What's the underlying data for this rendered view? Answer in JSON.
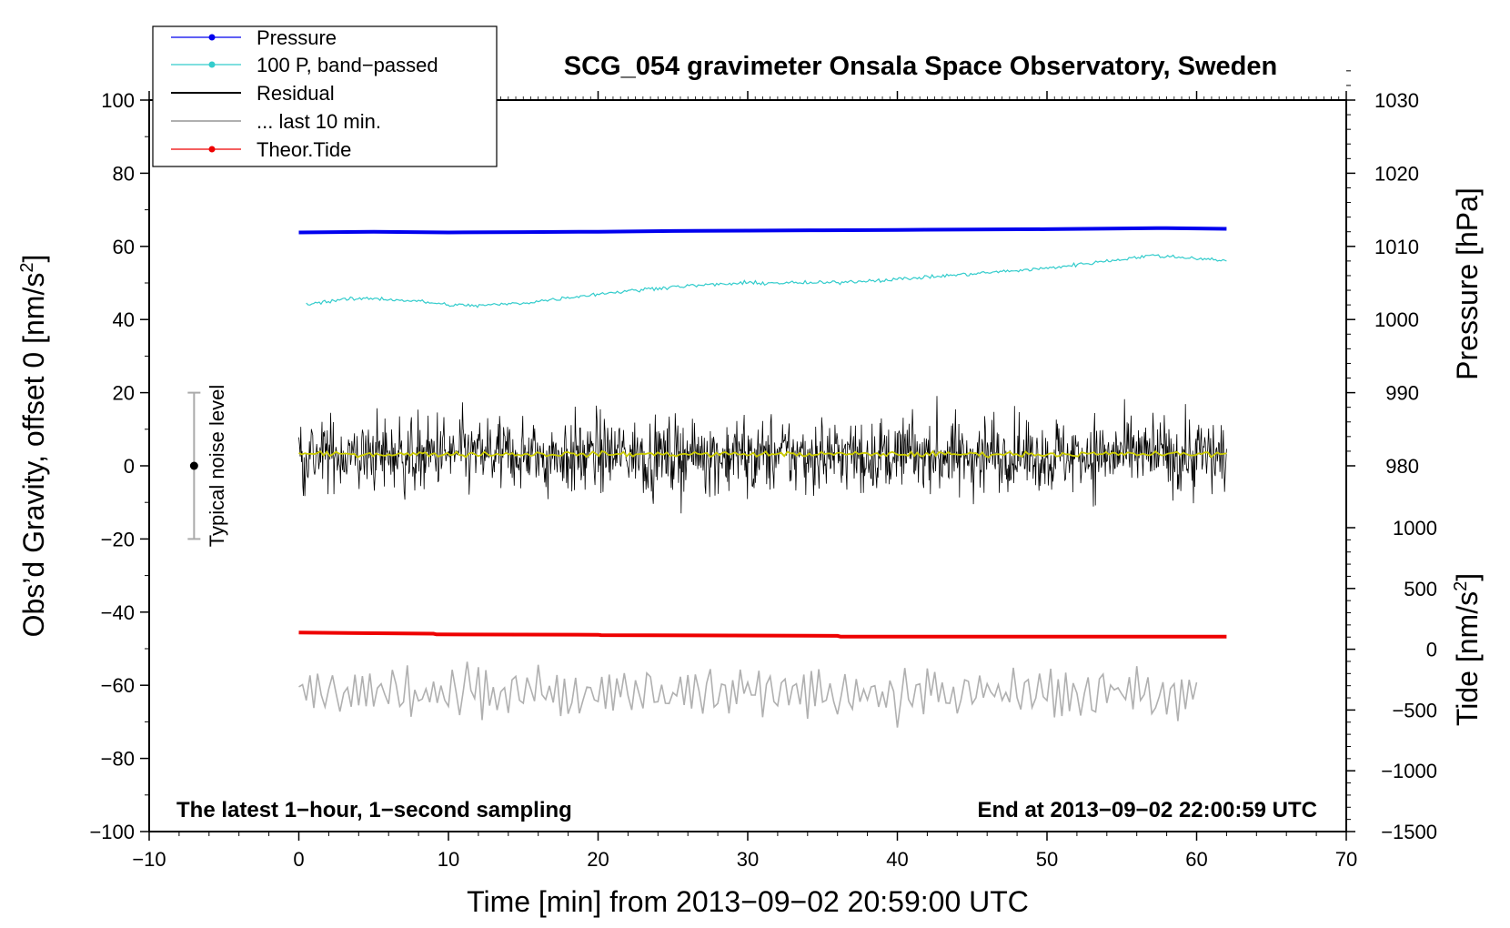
{
  "chart_data": {
    "type": "line",
    "title": "SCG_054 gravimeter Onsala Space Observatory, Sweden",
    "xlabel": "Time [min] from 2013−09−02 20:59:00 UTC",
    "ylabel_left": "Obs’d Gravity, offset 0 [nm/s",
    "ylabel_left_sup": "2",
    "ylabel_left_end": "]",
    "ylabel_pressure": "Pressure [hPa]",
    "ylabel_tide": "Tide [nm/s",
    "ylabel_tide_sup": "2",
    "ylabel_tide_end": "]",
    "xlim": [
      -10,
      70
    ],
    "ylim": [
      -100,
      100
    ],
    "x_ticks": [
      "−10",
      "0",
      "10",
      "20",
      "30",
      "40",
      "50",
      "60",
      "70"
    ],
    "y_ticks": [
      "100",
      "80",
      "60",
      "40",
      "20",
      "0",
      "−20",
      "−40",
      "−60",
      "−80",
      "−100"
    ],
    "pressure_ticks": [
      "1030",
      "1020",
      "1010",
      "1000",
      "990",
      "980"
    ],
    "tide_ticks": [
      "1000",
      "500",
      "0",
      "−500",
      "−1000",
      "−1500"
    ],
    "annotation_left": "The latest 1−hour, 1−second sampling",
    "annotation_right": "End at 2013−09−02 22:00:59 UTC",
    "noise_label": "Typical noise level",
    "noise_bar": {
      "x": -7,
      "center": 0,
      "low": -20,
      "high": 20
    },
    "legend": [
      {
        "label": "Pressure",
        "color": "#0000ee",
        "marker": true
      },
      {
        "label": "100 P, band−passed",
        "color": "#33cccc",
        "marker": true
      },
      {
        "label": "Residual",
        "color": "#000000",
        "marker": false
      },
      {
        "label": "... last 10 min.",
        "color": "#b0b0b0",
        "marker": false
      },
      {
        "label": "Theor.Tide",
        "color": "#ee0000",
        "marker": true
      }
    ],
    "series": [
      {
        "name": "Pressure",
        "color": "#0000ee",
        "x": [
          0,
          5,
          10,
          15,
          20,
          25,
          30,
          35,
          40,
          45,
          50,
          55,
          58,
          62
        ],
        "values": [
          63.8,
          64.0,
          63.8,
          63.9,
          64.0,
          64.2,
          64.3,
          64.4,
          64.5,
          64.6,
          64.7,
          64.9,
          65.0,
          64.8
        ]
      },
      {
        "name": "100 P, band−passed",
        "color": "#33cccc",
        "x": [
          0,
          3,
          5,
          8,
          10,
          12,
          15,
          18,
          20,
          25,
          30,
          35,
          40,
          45,
          50,
          55,
          57,
          59,
          61,
          62
        ],
        "values": [
          44.0,
          45.5,
          45.8,
          45.0,
          44.0,
          43.8,
          44.5,
          46.0,
          47.0,
          49.0,
          50.0,
          50.0,
          51.0,
          52.5,
          54.0,
          56.5,
          57.5,
          57.0,
          56.5,
          56.0
        ]
      },
      {
        "name": "Residual",
        "color": "#000000",
        "x_range": [
          0,
          62
        ],
        "mean": 3.0,
        "amplitude": 9.0,
        "min": -13,
        "max": 20
      },
      {
        "name": "Residual mean",
        "color": "#cccc00",
        "x_range": [
          0,
          62
        ],
        "mean": 3.2
      },
      {
        "name": "... last 10 min.",
        "color": "#b0b0b0",
        "x_range": [
          0,
          60
        ],
        "mean": -62,
        "amplitude": 6.5,
        "min": -74,
        "max": -47
      },
      {
        "name": "Theor.Tide",
        "color": "#ee0000",
        "x": [
          0,
          9,
          9.2,
          20,
          20.2,
          36,
          36.2,
          62
        ],
        "values": [
          -45.6,
          -45.9,
          -46.1,
          -46.2,
          -46.3,
          -46.5,
          -46.7,
          -46.7
        ]
      }
    ]
  }
}
